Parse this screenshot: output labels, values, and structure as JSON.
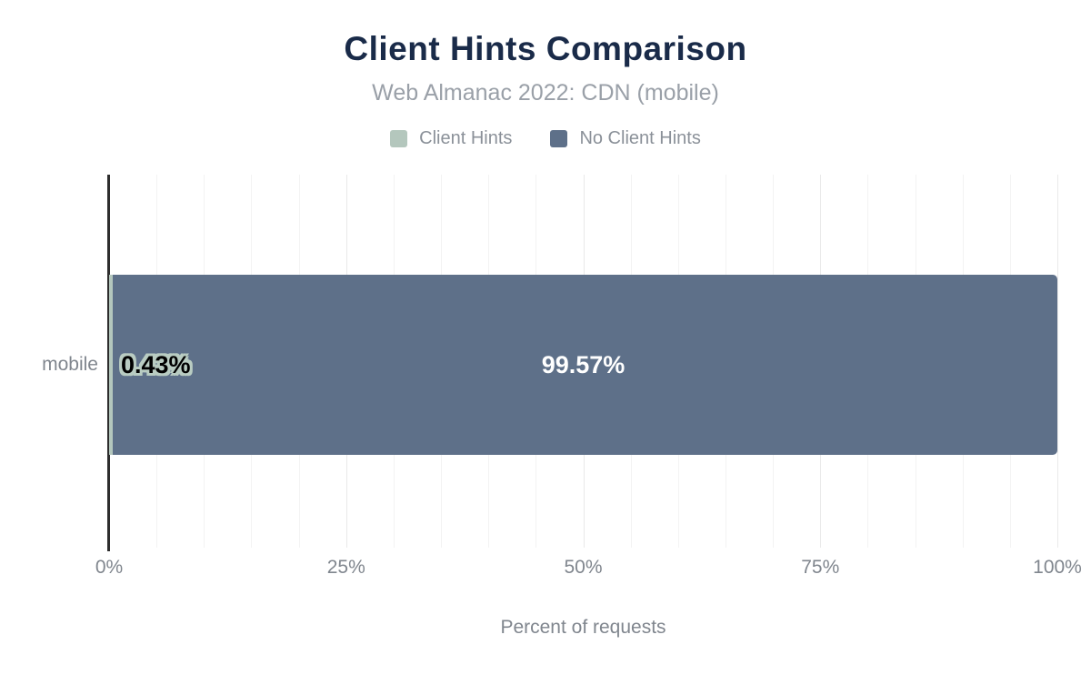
{
  "header": {
    "title": "Client Hints Comparison",
    "subtitle": "Web Almanac 2022: CDN (mobile)"
  },
  "legend": {
    "items": [
      {
        "label": "Client Hints",
        "color": "#b4c7bd"
      },
      {
        "label": "No Client Hints",
        "color": "#5e7089"
      }
    ]
  },
  "chart_data": {
    "type": "bar",
    "orientation": "horizontal",
    "stacked": true,
    "title": "Client Hints Comparison",
    "subtitle": "Web Almanac 2022: CDN (mobile)",
    "categories": [
      "mobile"
    ],
    "series": [
      {
        "name": "Client Hints",
        "values": [
          0.43
        ],
        "color": "#b4c7bd",
        "data_label": "0.43%"
      },
      {
        "name": "No Client Hints",
        "values": [
          99.57
        ],
        "color": "#5e7089",
        "data_label": "99.57%"
      }
    ],
    "xlabel": "Percent of requests",
    "ylabel": "",
    "xlim": [
      0,
      100
    ],
    "x_ticks": [
      {
        "value": 0,
        "label": "0%"
      },
      {
        "value": 25,
        "label": "25%"
      },
      {
        "value": 50,
        "label": "50%"
      },
      {
        "value": 75,
        "label": "75%"
      },
      {
        "value": 100,
        "label": "100%"
      }
    ],
    "grid": {
      "on": true,
      "minor_step": 5,
      "major_step": 25
    },
    "legend_position": "top"
  },
  "colors": {
    "title": "#1a2b49",
    "subtitle": "#9aa0a8",
    "legend_text": "#8b9199",
    "axis_text": "#80868e",
    "axis_line": "#2d2d2d",
    "grid_minor": "#f3f3f3",
    "grid_major": "#e9e9e9",
    "label_outline": "#b9ccc2",
    "background": "#ffffff"
  }
}
